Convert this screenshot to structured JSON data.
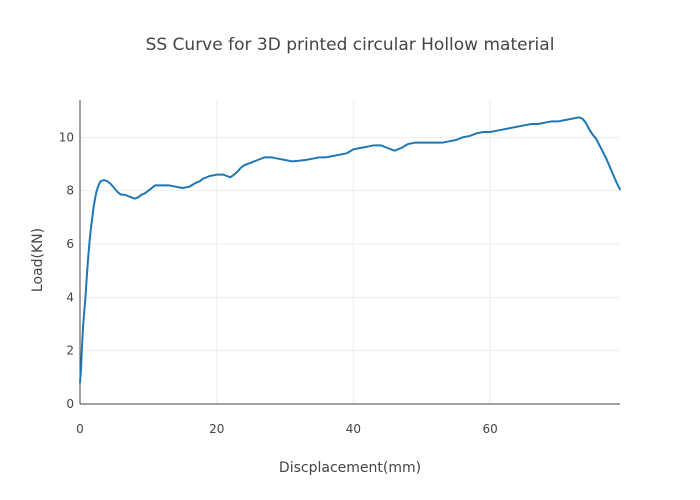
{
  "chart_data": {
    "type": "line",
    "title": "SS Curve for 3D printed circular Hollow material",
    "xlabel": "Discplacement(mm)",
    "ylabel": "Load(KN)",
    "xlim": [
      0,
      79
    ],
    "ylim": [
      0,
      11.4
    ],
    "xticks": [
      0,
      20,
      40,
      60
    ],
    "yticks": [
      0,
      2,
      4,
      6,
      8,
      10
    ],
    "grid": true,
    "legend": "none",
    "series": [
      {
        "color": "#1f77b4",
        "x": [
          0,
          0.15,
          0.3,
          0.45,
          0.6,
          0.8,
          1.0,
          1.2,
          1.4,
          1.6,
          1.8,
          2.0,
          2.2,
          2.4,
          2.7,
          3.0,
          3.5,
          4.0,
          4.5,
          5.0,
          5.5,
          6.0,
          6.5,
          7.0,
          7.5,
          8.0,
          8.5,
          9.0,
          9.5,
          10.0,
          11.0,
          12.0,
          13.0,
          14.0,
          15.0,
          16.0,
          17.0,
          17.5,
          18.0,
          19.0,
          20.0,
          21.0,
          21.5,
          22.0,
          22.5,
          23.0,
          23.5,
          24.0,
          25.0,
          26.0,
          27.0,
          28.0,
          29.0,
          30.0,
          31.0,
          32.0,
          33.0,
          34.0,
          35.0,
          36.0,
          37.0,
          38.0,
          39.0,
          40.0,
          41.0,
          42.0,
          43.0,
          44.0,
          44.5,
          45.0,
          46.0,
          47.0,
          48.0,
          49.0,
          50.0,
          51.0,
          52.0,
          53.0,
          54.0,
          55.0,
          56.0,
          57.0,
          58.0,
          59.0,
          60.0,
          61.0,
          62.0,
          63.0,
          64.0,
          65.0,
          66.0,
          67.0,
          68.0,
          69.0,
          70.0,
          71.0,
          72.0,
          73.0,
          73.5,
          74.0,
          74.5,
          75.0,
          75.5,
          76.0,
          76.5,
          77.0,
          77.5,
          78.0,
          78.5,
          79.0
        ],
        "y": [
          0.8,
          1.3,
          2.2,
          2.9,
          3.4,
          4.0,
          4.8,
          5.5,
          6.1,
          6.6,
          7.0,
          7.4,
          7.7,
          7.95,
          8.2,
          8.35,
          8.4,
          8.35,
          8.25,
          8.1,
          7.95,
          7.85,
          7.85,
          7.8,
          7.75,
          7.7,
          7.75,
          7.85,
          7.9,
          8.0,
          8.2,
          8.2,
          8.2,
          8.15,
          8.1,
          8.15,
          8.3,
          8.35,
          8.45,
          8.55,
          8.6,
          8.6,
          8.55,
          8.5,
          8.6,
          8.7,
          8.85,
          8.95,
          9.05,
          9.15,
          9.25,
          9.25,
          9.2,
          9.15,
          9.1,
          9.12,
          9.15,
          9.2,
          9.25,
          9.25,
          9.3,
          9.35,
          9.4,
          9.55,
          9.6,
          9.65,
          9.7,
          9.7,
          9.65,
          9.6,
          9.5,
          9.6,
          9.75,
          9.8,
          9.8,
          9.8,
          9.8,
          9.8,
          9.85,
          9.9,
          10.0,
          10.05,
          10.15,
          10.2,
          10.2,
          10.25,
          10.3,
          10.35,
          10.4,
          10.45,
          10.5,
          10.5,
          10.55,
          10.6,
          10.6,
          10.65,
          10.7,
          10.75,
          10.7,
          10.55,
          10.3,
          10.1,
          9.95,
          9.7,
          9.45,
          9.2,
          8.9,
          8.6,
          8.3,
          8.05
        ]
      }
    ]
  }
}
